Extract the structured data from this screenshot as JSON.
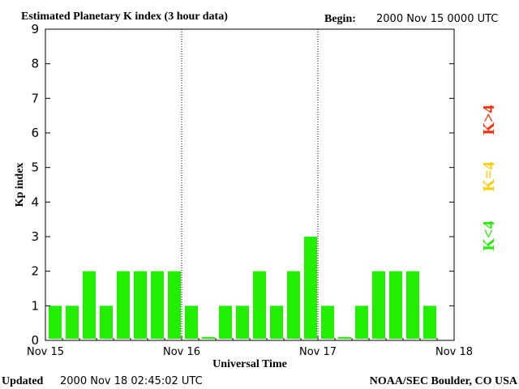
{
  "header": {
    "title": "Estimated Planetary K index (3 hour data)",
    "begin_label": "Begin:",
    "begin_value": "2000 Nov 15 0000 UTC"
  },
  "footer": {
    "updated_label": "Updated",
    "updated_value": "2000 Nov 18 02:45:02 UTC",
    "credit": "NOAA/SEC Boulder, CO USA"
  },
  "legend": {
    "high": {
      "label": "K>4",
      "color": "#ff2a00"
    },
    "equal": {
      "label": "K=4",
      "color": "#ffcc00"
    },
    "low": {
      "label": "K<4",
      "color": "#22ee00"
    }
  },
  "chart_data": {
    "type": "bar",
    "title": "Estimated Planetary K index (3 hour data)",
    "xlabel": "Universal Time",
    "ylabel": "Kp index",
    "ylim": [
      0,
      9
    ],
    "yticks": [
      "0",
      "1",
      "2",
      "3",
      "4",
      "5",
      "6",
      "7",
      "8",
      "9"
    ],
    "xticks": [
      "Nov 15",
      "Nov 16",
      "Nov 17",
      "Nov 18"
    ],
    "day_separators": [
      "Nov 16",
      "Nov 17"
    ],
    "grid": false,
    "bar_color": "#22ee00",
    "values": [
      1,
      1,
      2,
      1,
      2,
      2,
      2,
      2,
      1,
      0.1,
      1,
      1,
      2,
      1,
      2,
      3,
      1,
      0.1,
      1,
      2,
      2,
      2,
      1
    ]
  }
}
